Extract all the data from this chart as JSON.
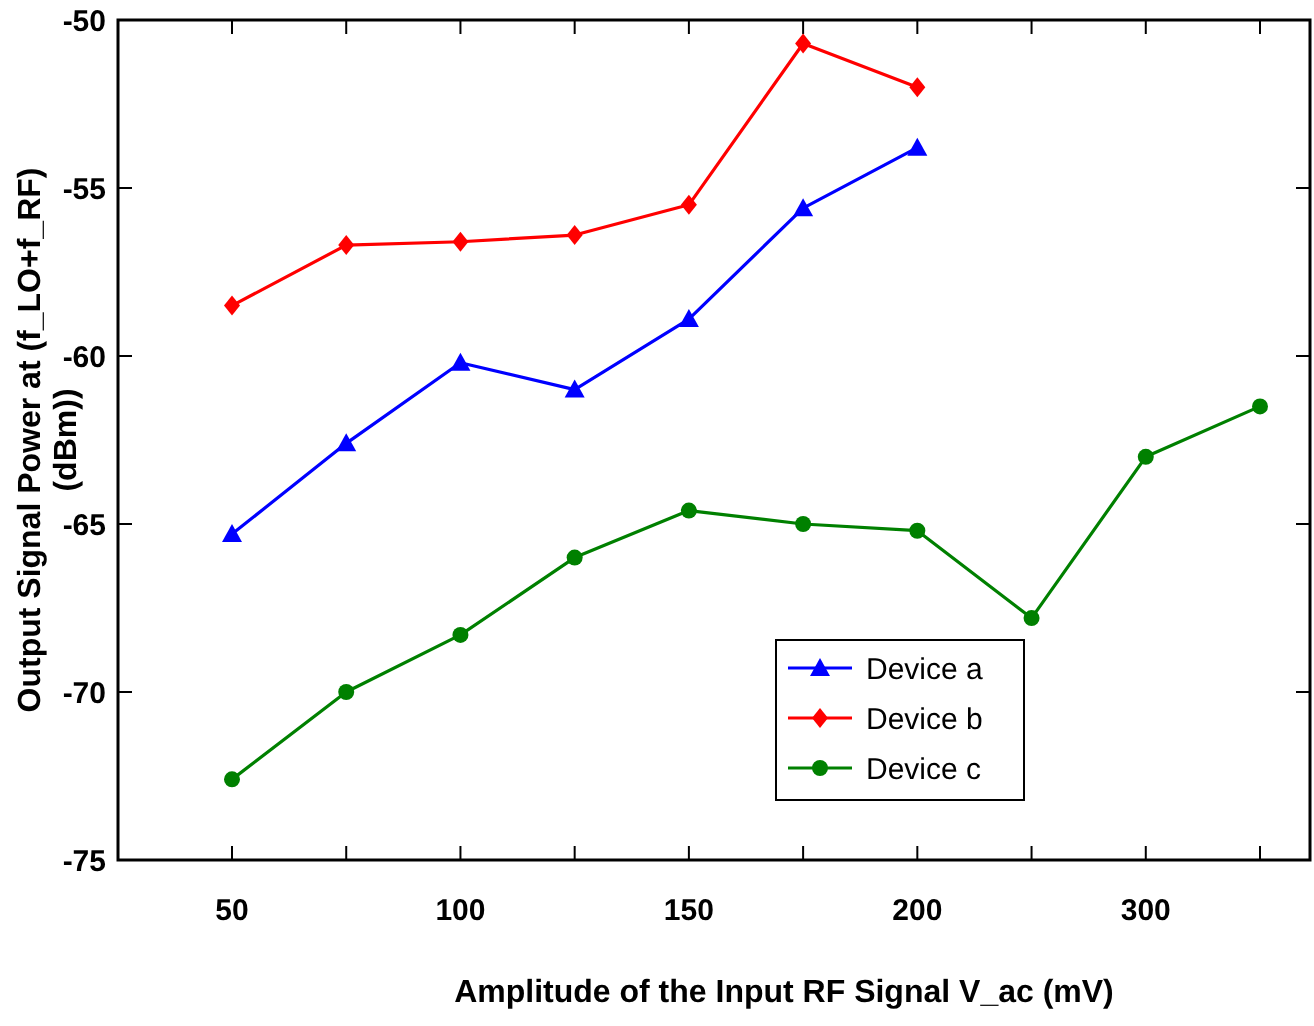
{
  "chart_data": {
    "type": "line",
    "xlabel": "Amplitude of the Input RF Signal V_ac (mV)",
    "ylabel": "Output Signal Power at (f_LO+f_RF)\n(dBm))",
    "categories": [
      "50",
      null,
      "100",
      null,
      "150",
      null,
      "200",
      null,
      "300",
      null
    ],
    "ylim": [
      -75,
      -50
    ],
    "yticks": [
      -75,
      -70,
      -65,
      -60,
      -55,
      -50
    ],
    "grid": false,
    "legend": "bottom right",
    "series": [
      {
        "name": "Device a",
        "color": "#0000ff",
        "marker": "triangle",
        "values": [
          -65.3,
          -62.6,
          -60.2,
          -61.0,
          -58.9,
          -55.6,
          -53.8,
          null,
          null,
          null
        ]
      },
      {
        "name": "Device b",
        "color": "#ff0000",
        "marker": "diamond",
        "values": [
          -58.5,
          -56.7,
          -56.6,
          -56.4,
          -55.5,
          -50.7,
          -52.0,
          null,
          null,
          null
        ]
      },
      {
        "name": "Device c",
        "color": "#008000",
        "marker": "circle",
        "values": [
          -72.6,
          -70.0,
          -68.3,
          -66.0,
          -64.6,
          -65.0,
          -65.2,
          -67.8,
          -63.0,
          -61.5
        ]
      }
    ]
  }
}
